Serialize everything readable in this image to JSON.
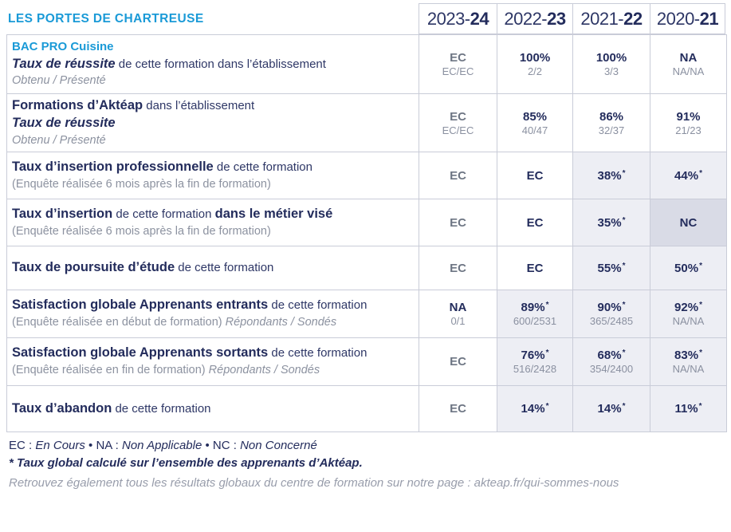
{
  "header": {
    "title": "LES PORTES DE CHARTREUSE",
    "years": [
      {
        "prefix": "2023-",
        "suffix": "24"
      },
      {
        "prefix": "2022-",
        "suffix": "23"
      },
      {
        "prefix": "2021-",
        "suffix": "22"
      },
      {
        "prefix": "2020-",
        "suffix": "21"
      }
    ]
  },
  "colors": {
    "accent_cyan": "#1A9AD7",
    "navy": "#232C5C",
    "muted_value_gray": "#6E7684",
    "sub_value_gray": "#8A90A0",
    "label_gray": "#8C92A0",
    "border": "#C9CCD8",
    "highlight_cell_bg": "#EDEEF4",
    "highlight_cell_bg_dark": "#D9DBE6"
  },
  "table": {
    "rows": [
      {
        "label_lines": [
          {
            "segments": [
              {
                "t": "BAC PRO Cuisine",
                "s": "cyan"
              }
            ]
          },
          {
            "segments": [
              {
                "t": "Taux de réussite",
                "s": "bi"
              },
              {
                "t": " de cette formation dans l’établissement",
                "s": "r"
              }
            ]
          },
          {
            "segments": [
              {
                "t": "Obtenu / Présenté",
                "s": "gi"
              }
            ]
          }
        ],
        "cells": [
          {
            "main": "EC",
            "sub": "EC/EC",
            "muted": true
          },
          {
            "main": "100%",
            "sub": "2/2"
          },
          {
            "main": "100%",
            "sub": "3/3"
          },
          {
            "main": "NA",
            "sub": "NA/NA"
          }
        ]
      },
      {
        "label_lines": [
          {
            "segments": [
              {
                "t": "Formations d’Aktéap",
                "s": "b"
              },
              {
                "t": " dans l’établissement",
                "s": "r"
              }
            ]
          },
          {
            "segments": [
              {
                "t": "Taux de réussite",
                "s": "bi"
              }
            ]
          },
          {
            "segments": [
              {
                "t": "Obtenu / Présenté",
                "s": "gi"
              }
            ]
          }
        ],
        "cells": [
          {
            "main": "EC",
            "sub": "EC/EC",
            "muted": true
          },
          {
            "main": "85%",
            "sub": "40/47"
          },
          {
            "main": "86%",
            "sub": "32/37"
          },
          {
            "main": "91%",
            "sub": "21/23"
          }
        ]
      },
      {
        "label_lines": [
          {
            "segments": [
              {
                "t": "Taux d’insertion professionnelle",
                "s": "b"
              },
              {
                "t": " de cette formation",
                "s": "r"
              }
            ]
          },
          {
            "segments": [
              {
                "t": "(Enquête réalisée 6 mois après la fin de formation)",
                "s": "g"
              }
            ]
          }
        ],
        "cells": [
          {
            "main": "EC",
            "muted": true
          },
          {
            "main": "EC"
          },
          {
            "main": "38%",
            "star": true,
            "bg": "lav"
          },
          {
            "main": "44%",
            "star": true,
            "bg": "lav"
          }
        ]
      },
      {
        "label_lines": [
          {
            "segments": [
              {
                "t": "Taux d’insertion",
                "s": "b"
              },
              {
                "t": " de cette formation ",
                "s": "r"
              },
              {
                "t": "dans le métier visé",
                "s": "b"
              }
            ]
          },
          {
            "segments": [
              {
                "t": "(Enquête réalisée 6 mois après la fin de formation)",
                "s": "g"
              }
            ]
          }
        ],
        "cells": [
          {
            "main": "EC",
            "muted": true
          },
          {
            "main": "EC"
          },
          {
            "main": "35%",
            "star": true,
            "bg": "lav"
          },
          {
            "main": "NC",
            "bg": "dark"
          }
        ]
      },
      {
        "label_lines": [
          {
            "segments": [
              {
                "t": "Taux de poursuite d’étude",
                "s": "b"
              },
              {
                "t": " de cette formation",
                "s": "r"
              }
            ]
          }
        ],
        "cells": [
          {
            "main": "EC",
            "muted": true
          },
          {
            "main": "EC"
          },
          {
            "main": "55%",
            "star": true,
            "bg": "lav"
          },
          {
            "main": "50%",
            "star": true,
            "bg": "lav"
          }
        ]
      },
      {
        "label_lines": [
          {
            "segments": [
              {
                "t": "Satisfaction globale Apprenants entrants",
                "s": "b"
              },
              {
                "t": " de cette formation",
                "s": "r"
              }
            ]
          },
          {
            "segments": [
              {
                "t": "(Enquête réalisée en début de formation) ",
                "s": "g"
              },
              {
                "t": "Répondants / Sondés",
                "s": "gi"
              }
            ]
          }
        ],
        "cells": [
          {
            "main": "NA",
            "sub": "0/1"
          },
          {
            "main": "89%",
            "star": true,
            "sub": "600/2531",
            "bg": "lav"
          },
          {
            "main": "90%",
            "star": true,
            "sub": "365/2485",
            "bg": "lav"
          },
          {
            "main": "92%",
            "star": true,
            "sub": "NA/NA",
            "bg": "lav"
          }
        ]
      },
      {
        "label_lines": [
          {
            "segments": [
              {
                "t": "Satisfaction globale Apprenants sortants",
                "s": "b"
              },
              {
                "t": " de cette formation",
                "s": "r"
              }
            ]
          },
          {
            "segments": [
              {
                "t": "(Enquête réalisée en fin de formation) ",
                "s": "g"
              },
              {
                "t": "Répondants / Sondés",
                "s": "gi"
              }
            ]
          }
        ],
        "cells": [
          {
            "main": "EC",
            "muted": true
          },
          {
            "main": "76%",
            "star": true,
            "sub": "516/2428",
            "bg": "lav"
          },
          {
            "main": "68%",
            "star": true,
            "sub": "354/2400",
            "bg": "lav"
          },
          {
            "main": "83%",
            "star": true,
            "sub": "NA/NA",
            "bg": "lav"
          }
        ]
      },
      {
        "label_lines": [
          {
            "segments": [
              {
                "t": "Taux d’abandon",
                "s": "b"
              },
              {
                "t": " de cette formation",
                "s": "r"
              }
            ]
          }
        ],
        "cells": [
          {
            "main": "EC",
            "muted": true
          },
          {
            "main": "14%",
            "star": true,
            "bg": "lav"
          },
          {
            "main": "14%",
            "star": true,
            "bg": "lav"
          },
          {
            "main": "11%",
            "star": true,
            "bg": "lav"
          }
        ]
      }
    ]
  },
  "footer": {
    "lines": [
      {
        "cls": "fline1",
        "segments": [
          {
            "t": "EC : ",
            "s": "n"
          },
          {
            "t": "En Cours",
            "s": "ni"
          },
          {
            "t": "  •  ",
            "s": "n"
          },
          {
            "t": "NA : ",
            "s": "n"
          },
          {
            "t": "Non Applicable",
            "s": "ni"
          },
          {
            "t": "  •  ",
            "s": "n"
          },
          {
            "t": "NC : ",
            "s": "n"
          },
          {
            "t": "Non Concerné",
            "s": "ni"
          }
        ]
      },
      {
        "cls": "fline2",
        "segments": [
          {
            "t": "* Taux global calculé sur l’ensemble des apprenants d’Aktéap.",
            "s": "nbi"
          }
        ]
      },
      {
        "cls": "fline3",
        "segments": [
          {
            "t": "Retrouvez également tous les résultats globaux du centre de formation sur notre page : akteap.fr/qui-sommes-nous",
            "s": "gi2"
          }
        ]
      }
    ]
  }
}
